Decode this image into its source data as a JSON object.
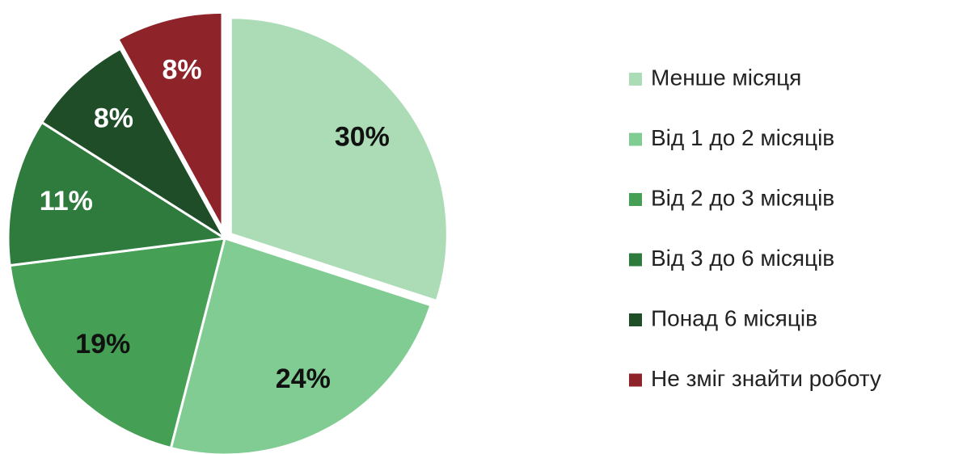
{
  "chart_data": {
    "type": "pie",
    "categories": [
      "Менше місяця",
      "Від 1 до 2 місяців",
      "Від 2 до 3 місяців",
      "Від 3 до 6 місяців",
      "Понад 6 місяців",
      "Не зміг знайти роботу"
    ],
    "values": [
      30,
      24,
      19,
      11,
      8,
      8
    ],
    "value_labels": [
      "30%",
      "24%",
      "19%",
      "11%",
      "8%",
      "8%"
    ],
    "colors": [
      "#acdcb6",
      "#80cc93",
      "#459f54",
      "#2f7a3d",
      "#1e4d28",
      "#8e2329"
    ],
    "label_colors": [
      "#111111",
      "#111111",
      "#111111",
      "#ffffff",
      "#ffffff",
      "#ffffff"
    ],
    "legend": "right"
  }
}
